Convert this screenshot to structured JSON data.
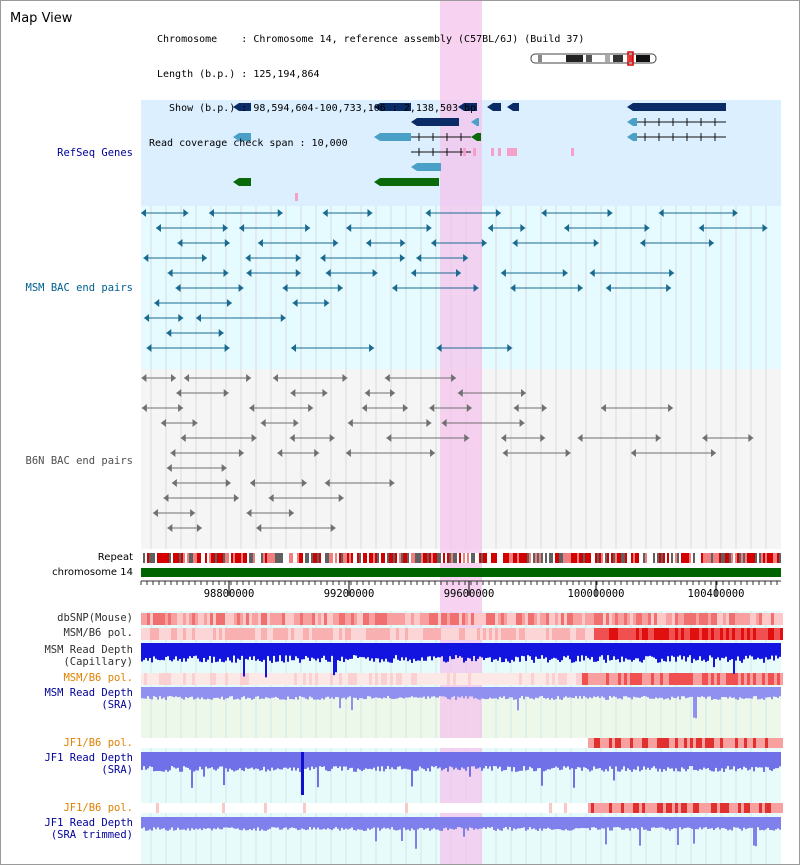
{
  "app": {
    "title": "Map View"
  },
  "header": {
    "chromosome_label": "Chromosome    : Chromosome 14, reference assembly (C57BL/6J) (Build 37)",
    "length_label": "Length (b.p.) : 125,194,864",
    "show_label": "  Show (b.p.) : 98,594,604-100,733,106 : 2,138,503 bp",
    "coverage_label": "Read coverage check span : 10,000"
  },
  "tracks": {
    "refseq": "RefSeq Genes",
    "msm_bac": "MSM BAC end pairs",
    "b6n_bac": "B6N BAC end pairs",
    "repeat": "Repeat",
    "chromosome": "chromosome 14",
    "dbsnp": "dbSNP(Mouse)",
    "msm_b6_pol_1": "MSM/B6 pol.",
    "msm_depth_cap_1": "MSM Read Depth",
    "msm_depth_cap_2": "(Capillary)",
    "msm_b6_pol_2": "MSM/B6 pol.",
    "msm_depth_sra_1": "MSM Read Depth",
    "msm_depth_sra_2": "(SRA)",
    "jf1_b6_pol_1": "JF1/B6 pol.",
    "jf1_depth_sra_1": "JF1 Read Depth",
    "jf1_depth_sra_2": "(SRA)",
    "jf1_b6_pol_2": "JF1/B6 pol.",
    "jf1_depth_trim_1": "JF1 Read Depth",
    "jf1_depth_trim_2": "(SRA trimmed)"
  },
  "axis": {
    "ticks": [
      "98800000",
      "99200000",
      "99600000",
      "100000000",
      "100400000"
    ]
  },
  "colors": {
    "refseq_bg": "#dcefff",
    "bac_bg": "#e6fbff",
    "b6n_bg": "#f5f5f5",
    "highlight": "#f4c4ec",
    "msm_label": "#006090",
    "refseq_label": "#000099",
    "pol_label": "#e08000",
    "depth_label": "#000099",
    "chromosome_green": "#006400",
    "gene_dark": "#0b2b66",
    "gene_light": "#4ba0c8",
    "gene_green": "#0a6a0a"
  }
}
